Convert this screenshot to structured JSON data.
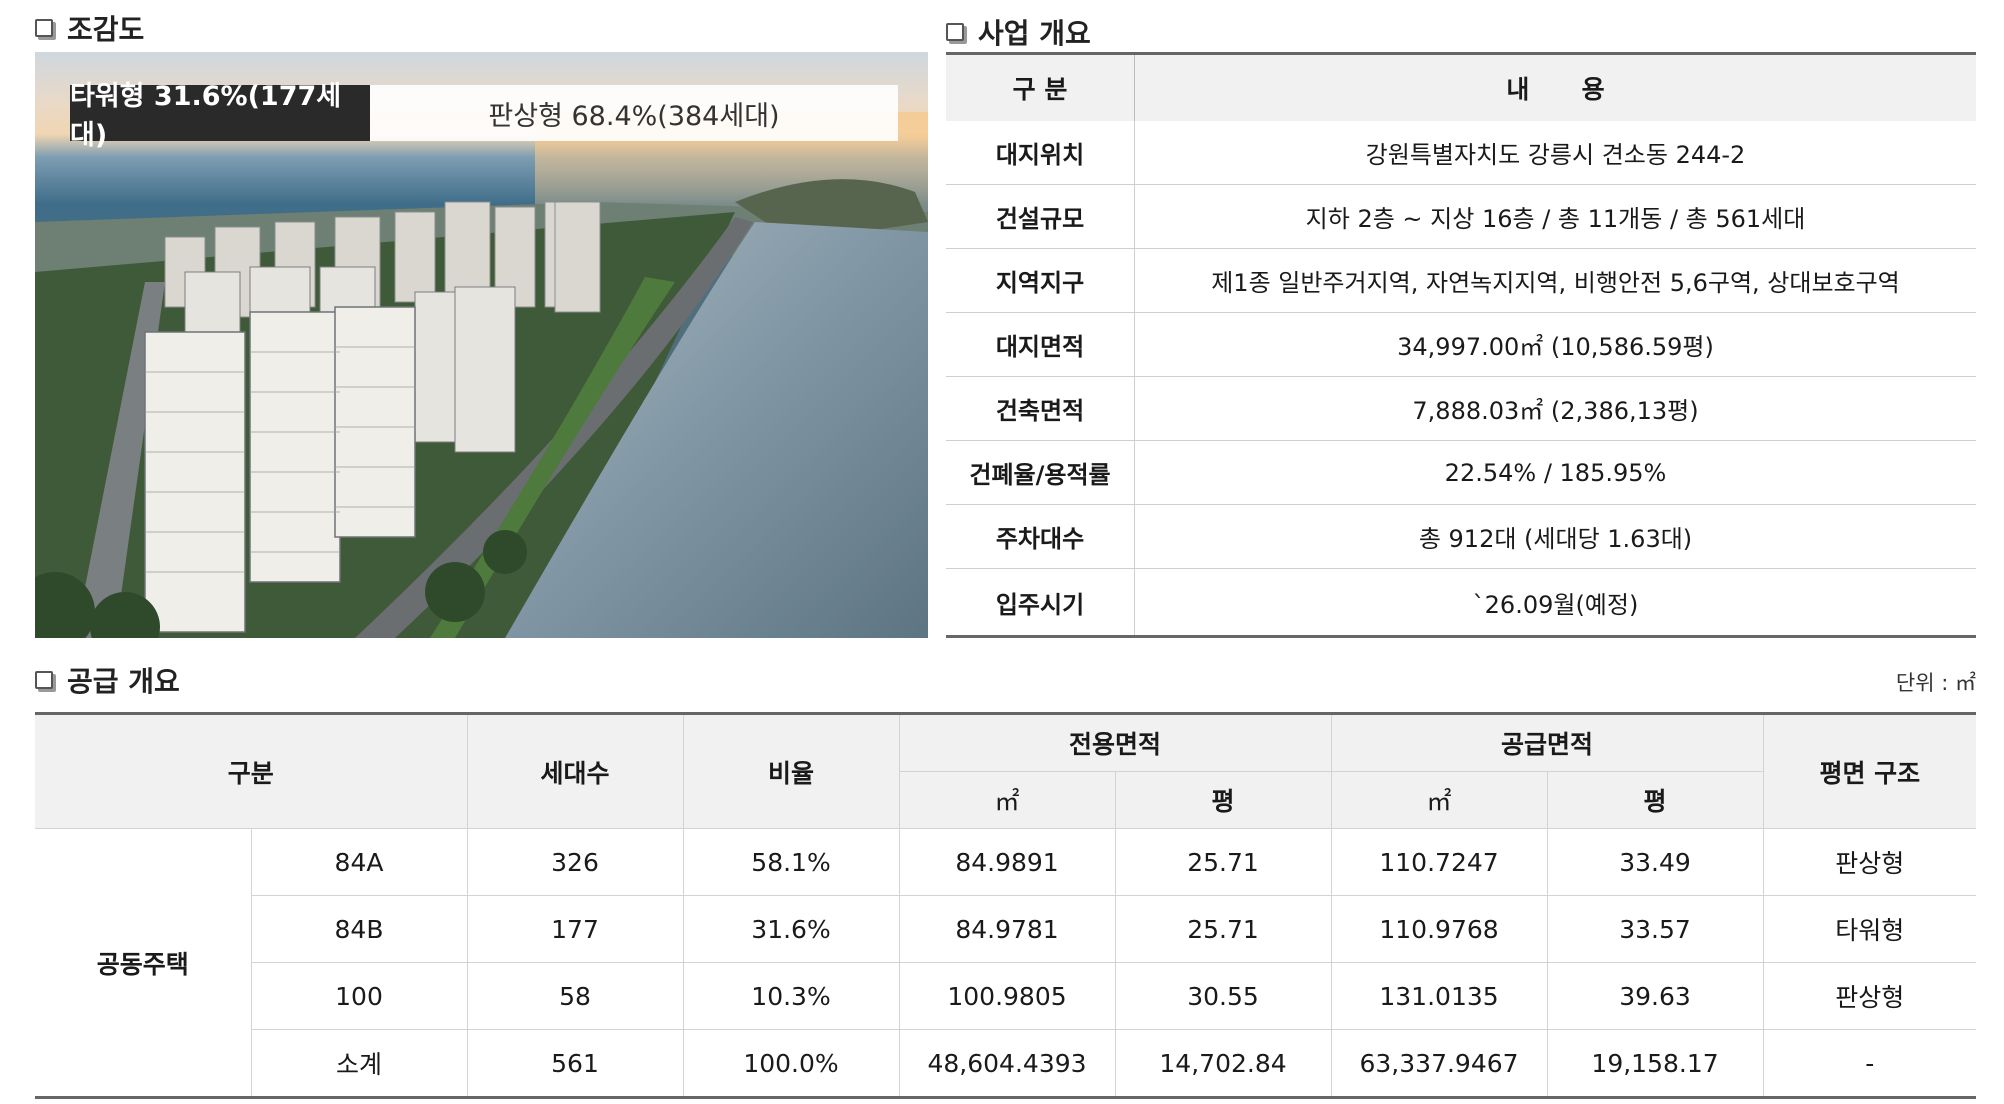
{
  "aerial": {
    "title": "조감도",
    "tower_label": "타워형 31.6%(177세대)",
    "plate_label": "판상형 68.4%(384세대)"
  },
  "business": {
    "title": "사업 개요",
    "header": {
      "col1": "구 분",
      "col2": "내      용"
    },
    "rows": [
      {
        "label": "대지위치",
        "value": "강원특별자치도 강릉시 견소동 244-2"
      },
      {
        "label": "건설규모",
        "value": "지하 2층 ~ 지상 16층 / 총 11개동 / 총 561세대"
      },
      {
        "label": "지역지구",
        "value": "제1종 일반주거지역, 자연녹지지역, 비행안전 5,6구역, 상대보호구역"
      },
      {
        "label": "대지면적",
        "value": "34,997.00㎡ (10,586.59평)"
      },
      {
        "label": "건축면적",
        "value": "7,888.03㎡ (2,386,13평)"
      },
      {
        "label": "건폐율/용적률",
        "value": "22.54% / 185.95%"
      },
      {
        "label": "주차대수",
        "value": "총 912대 (세대당 1.63대)"
      },
      {
        "label": "입주시기",
        "value": "`26.09월(예정)"
      }
    ]
  },
  "supply": {
    "title": "공급 개요",
    "unit": "단위 : ㎡",
    "headers": {
      "category": "구분",
      "households": "세대수",
      "ratio": "비율",
      "exclusive": "전용면적",
      "supply_area": "공급면적",
      "layout": "평면 구조",
      "sqm": "㎡",
      "pyeong": "평"
    },
    "group": "공동주택",
    "rows": [
      {
        "type": "84A",
        "households": "326",
        "ratio": "58.1%",
        "ex_sqm": "84.9891",
        "ex_py": "25.71",
        "sup_sqm": "110.7247",
        "sup_py": "33.49",
        "layout": "판상형"
      },
      {
        "type": "84B",
        "households": "177",
        "ratio": "31.6%",
        "ex_sqm": "84.9781",
        "ex_py": "25.71",
        "sup_sqm": "110.9768",
        "sup_py": "33.57",
        "layout": "타워형"
      },
      {
        "type": "100",
        "households": "58",
        "ratio": "10.3%",
        "ex_sqm": "100.9805",
        "ex_py": "30.55",
        "sup_sqm": "131.0135",
        "sup_py": "39.63",
        "layout": "판상형"
      },
      {
        "type": "소계",
        "households": "561",
        "ratio": "100.0%",
        "ex_sqm": "48,604.4393",
        "ex_py": "14,702.84",
        "sup_sqm": "63,337.9467",
        "sup_py": "19,158.17",
        "layout": "-"
      }
    ]
  }
}
